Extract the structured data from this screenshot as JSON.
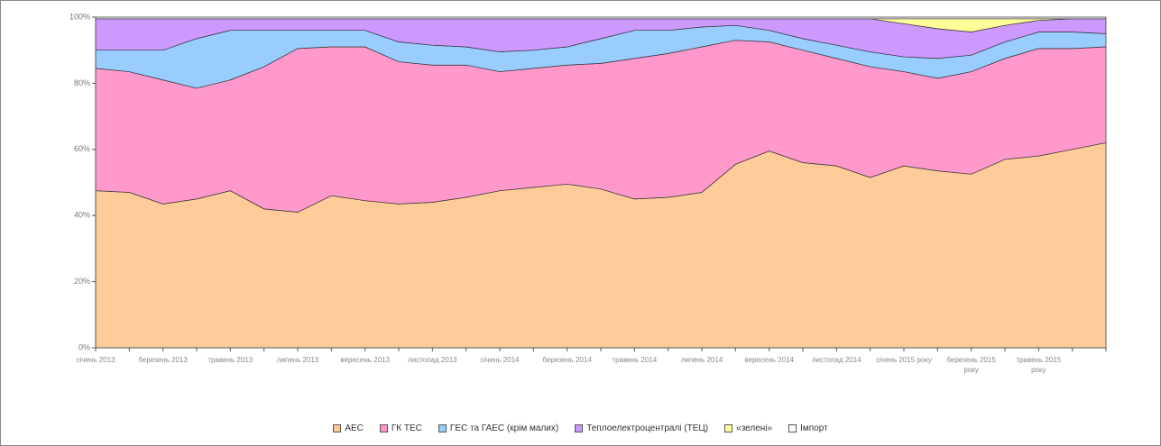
{
  "chart_data": {
    "type": "stacked_area",
    "categories": [
      "січень 2013",
      null,
      "березень 2013",
      null,
      "травень 2013",
      null,
      "липень 2013",
      null,
      "вересень 2013",
      null,
      "листопад 2013",
      null,
      "січень 2014",
      null,
      "березень 2014",
      null,
      "травень 2014",
      null,
      "липень 2014",
      null,
      "вересень 2014",
      null,
      "листопад 2014",
      null,
      "січень 2015 року",
      null,
      "березень 2015 року",
      null,
      "травень 2015 року",
      null,
      null
    ],
    "series": [
      {
        "name": "АЕС",
        "color": "#ffcc99",
        "values": [
          47.5,
          47,
          43.5,
          45,
          47.5,
          42,
          41,
          46,
          44.5,
          43.5,
          44,
          45.5,
          47.5,
          48.5,
          49.5,
          48,
          45,
          45.5,
          47,
          55.5,
          59.5,
          56,
          55,
          51.5,
          55,
          53.5,
          52.5,
          57,
          58,
          60,
          62
        ]
      },
      {
        "name": "ГК ТЕС",
        "color": "#ff99cc",
        "values": [
          37,
          36.5,
          37.5,
          33.5,
          33.5,
          43,
          49.5,
          45,
          46.5,
          43,
          41.5,
          40,
          36,
          36,
          36,
          38,
          42.5,
          43.5,
          44,
          37.5,
          33,
          34,
          32.5,
          33.5,
          28.5,
          28,
          31,
          30.5,
          32.5,
          30.5,
          29
        ]
      },
      {
        "name": "ГЕС та ГАЕС (крім малих)",
        "color": "#99ccff",
        "values": [
          5.5,
          6.5,
          9,
          15,
          15,
          11,
          5.5,
          5,
          5,
          6,
          6,
          5.5,
          6,
          5.5,
          5.5,
          7.5,
          8.5,
          7,
          6,
          4.5,
          3.5,
          3.5,
          4,
          4.5,
          4.5,
          6,
          5,
          5,
          5,
          5,
          4
        ]
      },
      {
        "name": "Теплоелектроцентралі (ТЕЦ)",
        "color": "#cc99ff",
        "values": [
          9.5,
          9.5,
          9.5,
          6,
          3.5,
          3.5,
          3.5,
          3.5,
          3.5,
          7,
          8,
          8.5,
          10,
          9.5,
          8.5,
          6,
          3.5,
          3.5,
          2.5,
          2,
          3.5,
          6,
          8,
          10,
          10,
          9,
          7,
          5,
          3.5,
          4,
          4.5
        ]
      },
      {
        "name": "«зелені»",
        "color": "#ffff99",
        "values": [
          0,
          0,
          0,
          0,
          0,
          0,
          0,
          0,
          0,
          0,
          0,
          0,
          0,
          0,
          0,
          0,
          0,
          0,
          0,
          0,
          0,
          0,
          0,
          0,
          1.5,
          3,
          4,
          2,
          0.5,
          0,
          0
        ]
      },
      {
        "name": "Імпорт",
        "color": "#ffffff",
        "values": [
          0.5,
          0.5,
          0.5,
          0.5,
          0.5,
          0.5,
          0.5,
          0.5,
          0.5,
          0.5,
          0.5,
          0.5,
          0.5,
          0.5,
          0.5,
          0.5,
          0.5,
          0.5,
          0.5,
          0.5,
          0.5,
          0.5,
          0.5,
          0.5,
          0.5,
          0.5,
          0.5,
          0.5,
          0.5,
          0.5,
          0.5
        ]
      }
    ],
    "ylim": [
      0,
      100
    ],
    "yticks": [
      {
        "value": 0,
        "label": "0%"
      },
      {
        "value": 20,
        "label": "20%"
      },
      {
        "value": 40,
        "label": "40%"
      },
      {
        "value": 60,
        "label": "60%"
      },
      {
        "value": 80,
        "label": "80%"
      },
      {
        "value": 100,
        "label": "100%"
      }
    ],
    "legend": "bottom"
  }
}
